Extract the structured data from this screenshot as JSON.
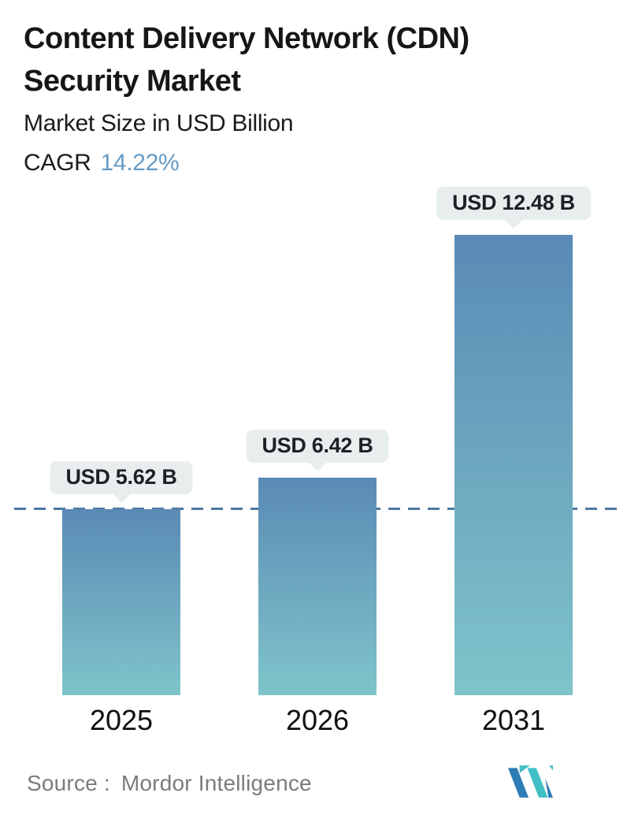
{
  "header": {
    "title": "Content Delivery Network (CDN) Security Market",
    "subtitle": "Market Size in USD Billion",
    "cagr_label": "CAGR",
    "cagr_value": "14.22%",
    "cagr_value_color": "#649bc5"
  },
  "chart_data": {
    "type": "bar",
    "categories": [
      "2025",
      "2026",
      "2031"
    ],
    "values": [
      5.62,
      6.42,
      12.48
    ],
    "value_labels": [
      "USD 5.62 B",
      "USD 6.42 B",
      "USD 12.48 B"
    ],
    "unit": "USD Billion",
    "title": "Content Delivery Network (CDN) Security Market",
    "xlabel": "",
    "ylabel": "Market Size in USD Billion",
    "grid": false,
    "legend": false,
    "reference_line": {
      "value": 5.62,
      "at_category": "2025",
      "style": "dashed",
      "color": "#4d77a3"
    },
    "bar_gradient_top": "#5a8ab5",
    "bar_gradient_bottom": "#7fc4ca",
    "label_bubble_bg": "#e8eeee"
  },
  "footer": {
    "source_label": "Source :",
    "source_value": "Mordor Intelligence",
    "logo_name": "mordor-intelligence-logo",
    "logo_teal": "#43bec6",
    "logo_blue": "#2e7cb5"
  }
}
